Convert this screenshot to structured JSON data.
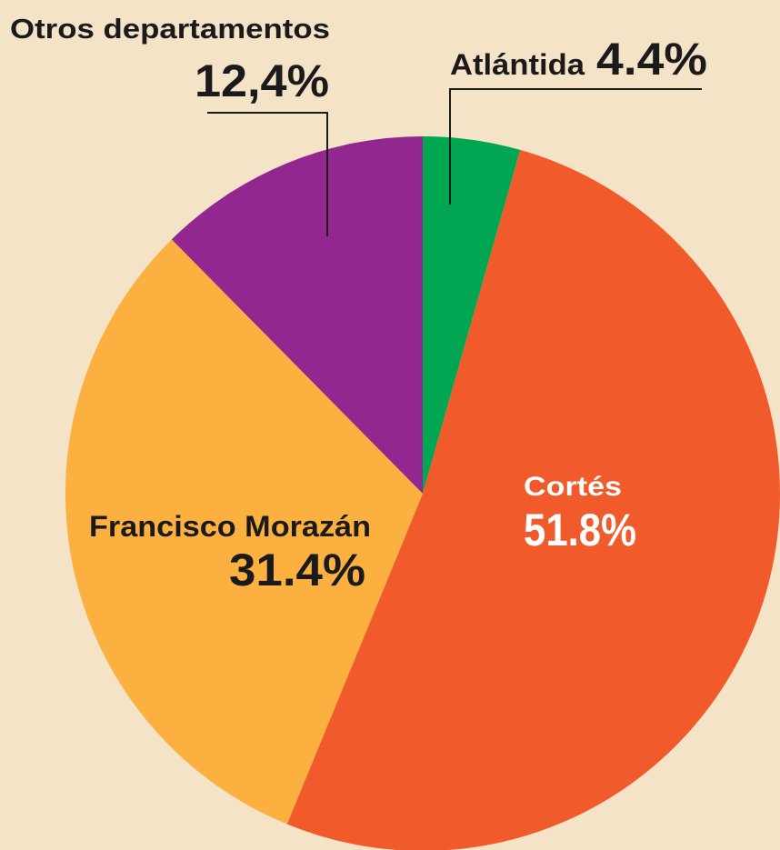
{
  "chart_data": {
    "type": "pie",
    "categories": [
      "Atlántida",
      "Cortés",
      "Francisco Morazán",
      "Otros departamentos"
    ],
    "values": [
      4.4,
      51.8,
      31.4,
      12.4
    ],
    "value_labels": [
      "4.4%",
      "51.8%",
      "31.4%",
      "12,4%"
    ],
    "colors": [
      "#00a651",
      "#f15a2b",
      "#fbb040",
      "#92278f"
    ]
  }
}
